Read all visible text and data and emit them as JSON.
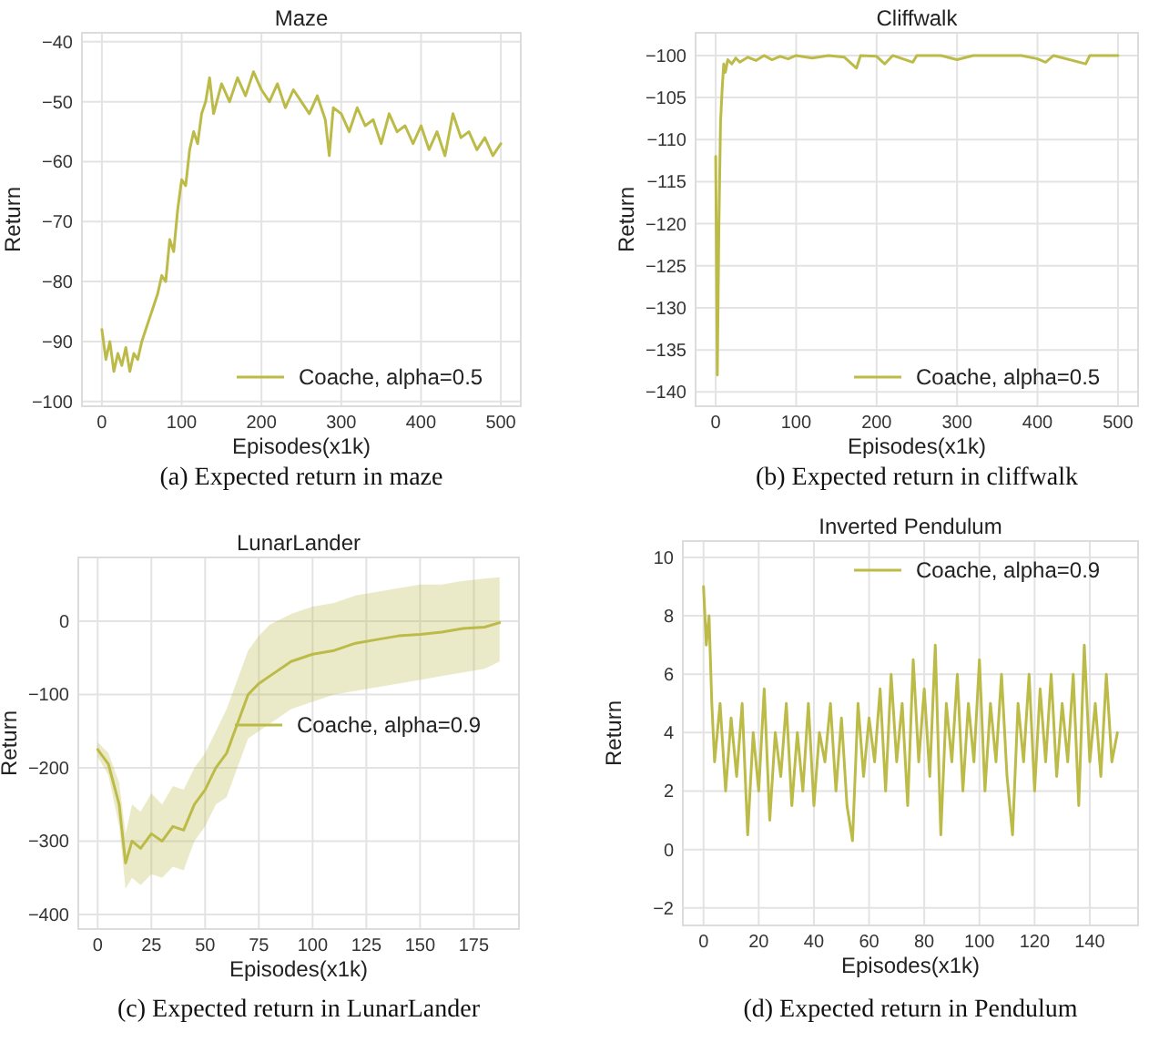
{
  "chart_data": [
    {
      "type": "line",
      "title": "Maze",
      "xlabel": "Episodes(x1k)",
      "ylabel": "Return",
      "annotations": [
        "(a) Expected return in maze"
      ],
      "xlim": [
        -25,
        525
      ],
      "ylim": [
        -100.8,
        -38.5
      ],
      "xticks": [
        0,
        100,
        200,
        300,
        400,
        500
      ],
      "yticks": [
        -100,
        -90,
        -80,
        -70,
        -60,
        -50,
        -40
      ],
      "grid": true,
      "legend": "bottom right",
      "series": [
        {
          "name": "Coache, alpha=0.5",
          "color": "#bdbb48",
          "x": [
            0,
            5,
            10,
            15,
            20,
            25,
            30,
            35,
            40,
            45,
            50,
            55,
            60,
            65,
            70,
            75,
            80,
            85,
            90,
            95,
            100,
            105,
            110,
            115,
            120,
            125,
            130,
            135,
            140,
            150,
            160,
            170,
            180,
            190,
            200,
            210,
            220,
            230,
            240,
            250,
            260,
            270,
            280,
            285,
            290,
            300,
            310,
            320,
            330,
            340,
            350,
            360,
            370,
            380,
            390,
            400,
            410,
            420,
            430,
            440,
            450,
            460,
            470,
            480,
            490,
            500
          ],
          "values": [
            -88,
            -93,
            -90,
            -95,
            -92,
            -94,
            -91,
            -95,
            -92,
            -93,
            -90,
            -88,
            -86,
            -84,
            -82,
            -79,
            -80,
            -73,
            -75,
            -68,
            -63,
            -64,
            -58,
            -55,
            -57,
            -52,
            -50,
            -46,
            -52,
            -47,
            -50,
            -46,
            -49,
            -45,
            -48,
            -50,
            -47,
            -51,
            -48,
            -50,
            -52,
            -49,
            -53,
            -59,
            -51,
            -52,
            -55,
            -51,
            -54,
            -53,
            -57,
            -52,
            -55,
            -54,
            -57,
            -54,
            -58,
            -55,
            -59,
            -52,
            -56,
            -55,
            -58,
            -56,
            -59,
            -57
          ]
        }
      ]
    },
    {
      "type": "line",
      "title": "Cliffwalk",
      "xlabel": "Episodes(x1k)",
      "ylabel": "Return",
      "annotations": [
        "(b) Expected return in cliffwalk"
      ],
      "xlim": [
        -25,
        525
      ],
      "ylim": [
        -141.7,
        -97.3
      ],
      "xticks": [
        0,
        100,
        200,
        300,
        400,
        500
      ],
      "yticks": [
        -140,
        -135,
        -130,
        -125,
        -120,
        -115,
        -110,
        -105,
        -100
      ],
      "grid": true,
      "legend": "bottom right",
      "series": [
        {
          "name": "Coache, alpha=0.5",
          "color": "#bdbb48",
          "x": [
            0,
            2,
            4,
            6,
            8,
            10,
            12,
            15,
            20,
            25,
            30,
            40,
            50,
            60,
            70,
            80,
            90,
            100,
            120,
            140,
            160,
            175,
            180,
            200,
            210,
            220,
            245,
            250,
            280,
            300,
            320,
            350,
            380,
            400,
            410,
            420,
            460,
            465,
            500
          ],
          "values": [
            -112,
            -138,
            -120,
            -108,
            -104,
            -101,
            -102,
            -100.5,
            -101,
            -100.3,
            -100.8,
            -100.2,
            -100.6,
            -100,
            -100.5,
            -100.1,
            -100.4,
            -100,
            -100.3,
            -100,
            -100.2,
            -101.5,
            -100,
            -100.1,
            -101,
            -100,
            -100.8,
            -100,
            -100,
            -100.5,
            -100,
            -100,
            -100,
            -100.4,
            -100.8,
            -100,
            -101,
            -100,
            -100
          ]
        }
      ]
    },
    {
      "type": "line",
      "title": "LunarLander",
      "xlabel": "Episodes(x1k)",
      "ylabel": "Return",
      "annotations": [
        "(c) Expected return in LunarLander"
      ],
      "xlim": [
        -9,
        196
      ],
      "ylim": [
        -420,
        87
      ],
      "xticks": [
        0,
        25,
        50,
        75,
        100,
        125,
        150,
        175
      ],
      "yticks": [
        -400,
        -300,
        -200,
        -100,
        0
      ],
      "grid": true,
      "legend": "right",
      "series": [
        {
          "name": "Coache, alpha=0.9",
          "color": "#bdbb48",
          "x": [
            0,
            5,
            10,
            13,
            16,
            20,
            25,
            30,
            35,
            40,
            45,
            50,
            55,
            60,
            65,
            70,
            75,
            80,
            90,
            100,
            110,
            120,
            130,
            140,
            150,
            160,
            170,
            180,
            187
          ],
          "values": [
            -175,
            -195,
            -250,
            -330,
            -300,
            -310,
            -290,
            -300,
            -280,
            -285,
            -250,
            -230,
            -200,
            -180,
            -140,
            -100,
            -85,
            -75,
            -55,
            -45,
            -40,
            -30,
            -25,
            -20,
            -18,
            -15,
            -10,
            -8,
            -2
          ],
          "lower": [
            -185,
            -210,
            -280,
            -365,
            -350,
            -360,
            -345,
            -350,
            -335,
            -340,
            -300,
            -280,
            -250,
            -240,
            -200,
            -160,
            -150,
            -140,
            -120,
            -110,
            -100,
            -95,
            -90,
            -85,
            -80,
            -75,
            -70,
            -65,
            -55
          ],
          "upper": [
            -165,
            -180,
            -220,
            -290,
            -250,
            -260,
            -235,
            -250,
            -225,
            -230,
            -200,
            -180,
            -150,
            -120,
            -80,
            -40,
            -20,
            -5,
            10,
            20,
            25,
            35,
            40,
            45,
            50,
            50,
            55,
            58,
            60
          ]
        }
      ]
    },
    {
      "type": "line",
      "title": "Inverted Pendulum",
      "xlabel": "Episodes(x1k)",
      "ylabel": "Return",
      "annotations": [
        "(d) Expected return in Pendulum"
      ],
      "xlim": [
        -7.5,
        157.5
      ],
      "ylim": [
        -2.6,
        10.56
      ],
      "xticks": [
        0,
        20,
        40,
        60,
        80,
        100,
        120,
        140
      ],
      "yticks": [
        -2,
        0,
        2,
        4,
        6,
        8,
        10
      ],
      "grid": true,
      "legend": "top right",
      "series": [
        {
          "name": "Coache, alpha=0.9",
          "color": "#bdbb48",
          "x": [
            0,
            1,
            2,
            3,
            4,
            6,
            8,
            10,
            12,
            14,
            16,
            18,
            20,
            22,
            24,
            26,
            28,
            30,
            32,
            34,
            36,
            38,
            40,
            42,
            44,
            46,
            48,
            50,
            52,
            54,
            56,
            58,
            60,
            62,
            64,
            66,
            68,
            70,
            72,
            74,
            76,
            78,
            80,
            82,
            84,
            86,
            88,
            90,
            92,
            94,
            96,
            98,
            100,
            102,
            104,
            106,
            108,
            110,
            112,
            114,
            116,
            118,
            120,
            122,
            124,
            126,
            128,
            130,
            132,
            134,
            136,
            138,
            140,
            142,
            144,
            146,
            148,
            150
          ],
          "values": [
            9,
            7,
            8,
            5,
            3,
            5,
            2,
            4.5,
            2.5,
            5,
            0.5,
            4,
            2,
            5.5,
            1,
            4,
            2.5,
            5,
            1.5,
            4,
            2,
            5,
            1.5,
            4,
            3,
            5,
            2,
            4.5,
            1.5,
            0.3,
            5,
            2.5,
            4.5,
            3,
            5.5,
            2,
            6,
            3,
            5,
            1.5,
            6.5,
            3,
            5.5,
            2.5,
            7,
            0.5,
            5,
            3,
            6,
            2,
            5,
            3,
            6.5,
            2,
            5,
            3,
            6,
            2.5,
            0.5,
            5,
            3,
            6,
            2,
            5.5,
            3,
            6,
            2.5,
            5,
            3,
            6,
            1.5,
            7,
            3,
            5,
            2.5,
            6,
            3,
            4
          ]
        }
      ]
    }
  ]
}
